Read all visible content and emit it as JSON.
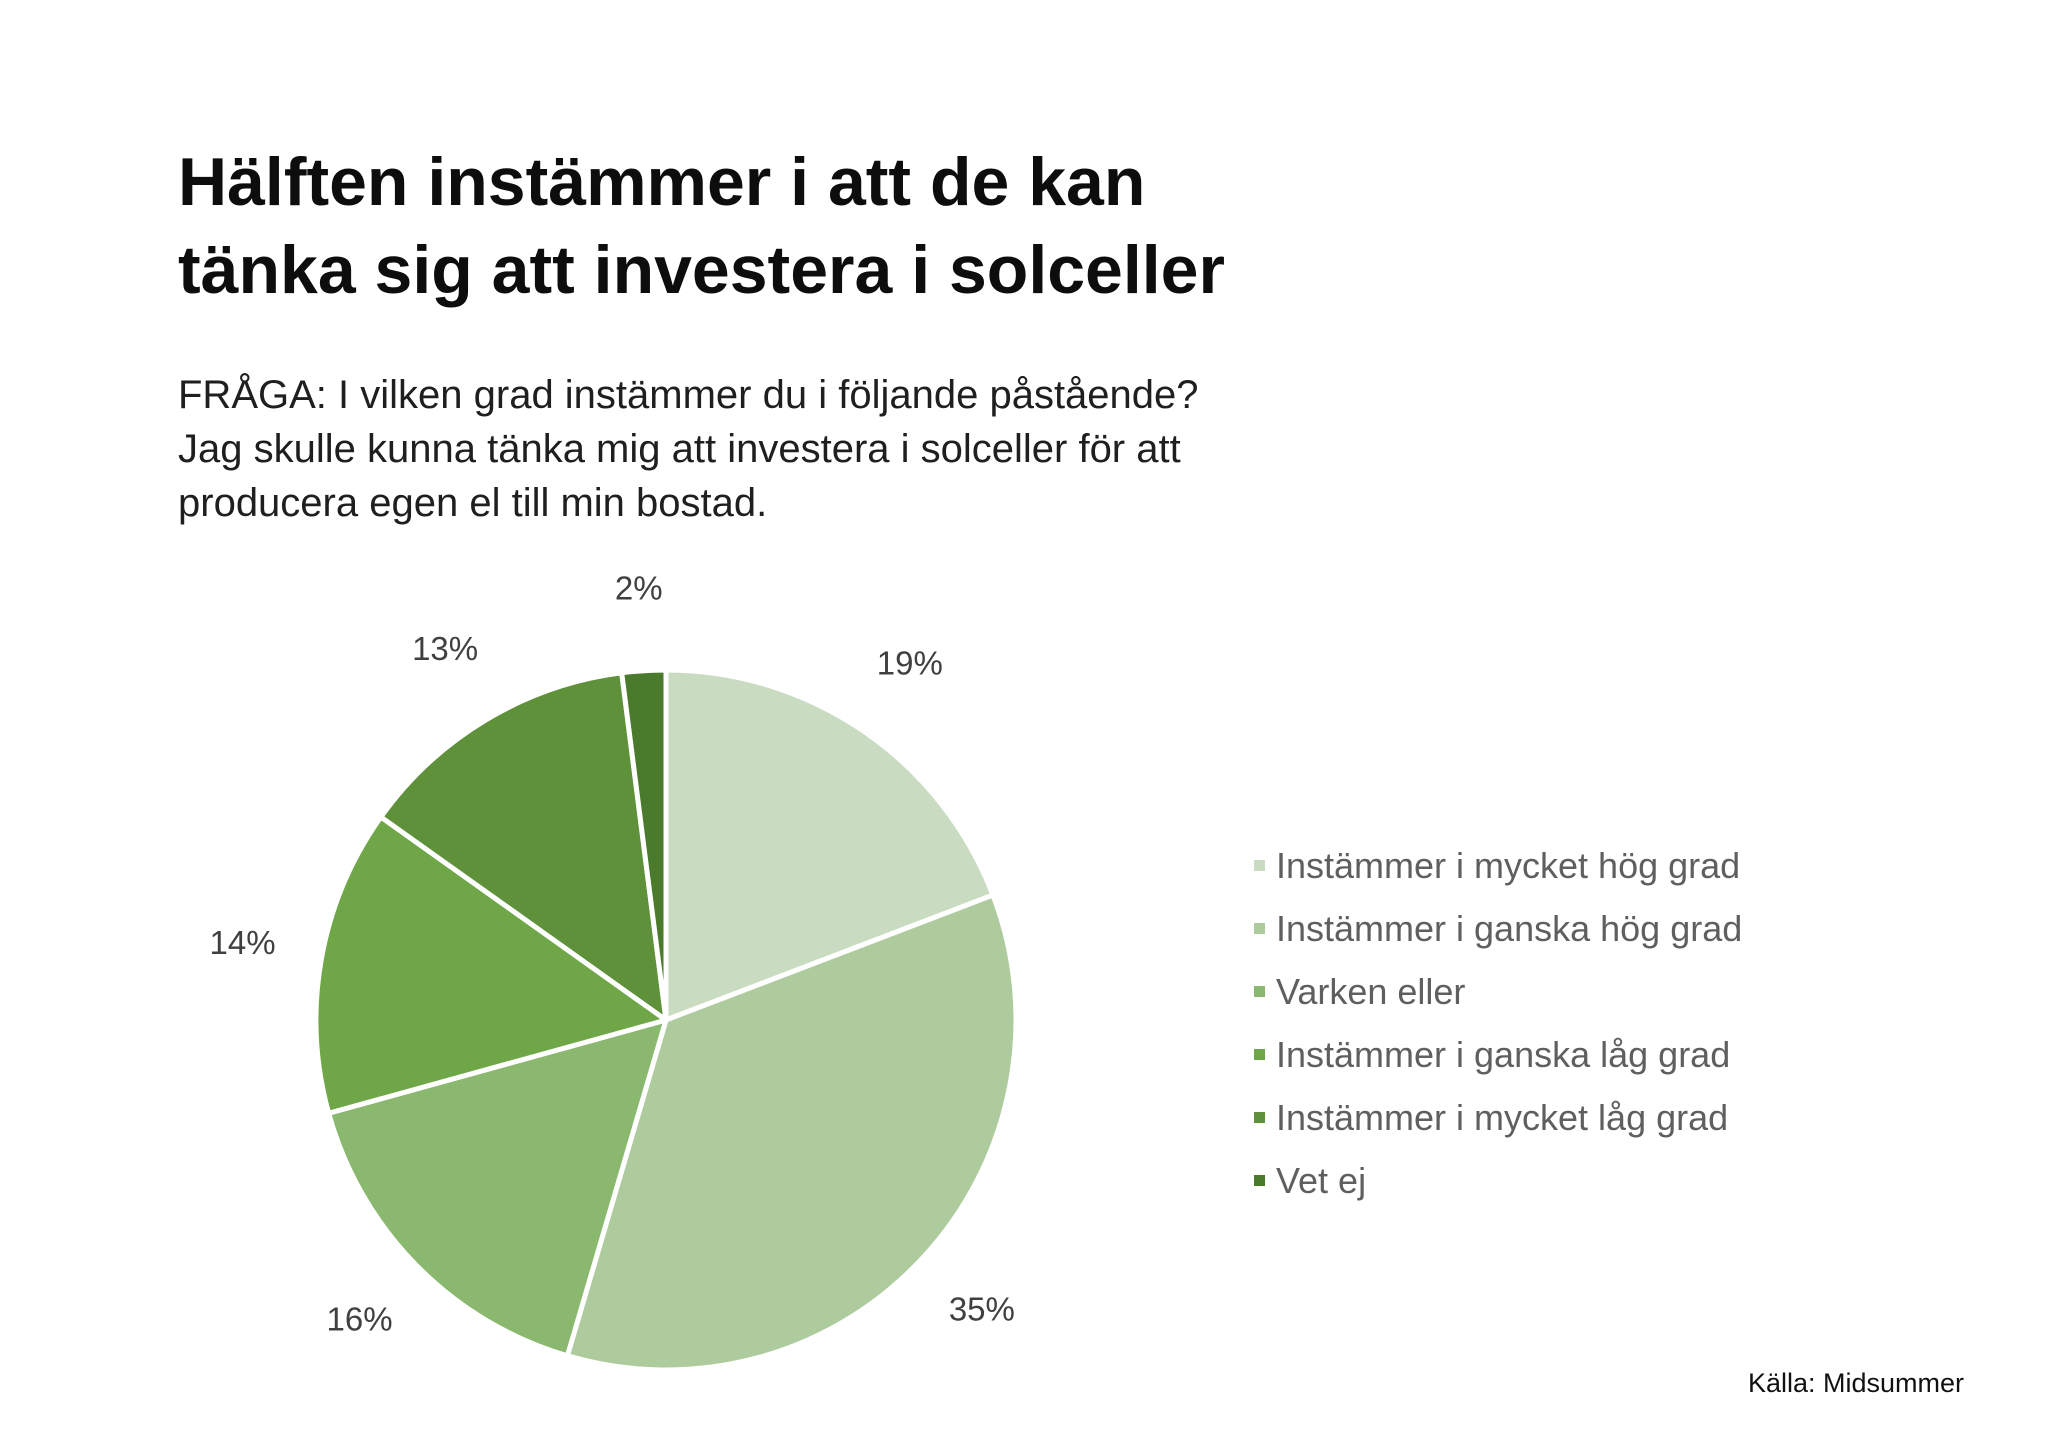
{
  "title": "Hälften instämmer i att de kan\ntänka sig att investera i solceller",
  "question": "FRÅGA: I vilken grad instämmer du i följande påstående?\nJag skulle kunna tänka mig att investera i solceller för att\nproducera egen el till min bostad.",
  "source": "Källa: Midsummer",
  "chart_data": {
    "type": "pie",
    "title": "",
    "categories": [
      "Instämmer i mycket hög grad",
      "Instämmer i ganska hög grad",
      "Varken eller",
      "Instämmer i ganska låg grad",
      "Instämmer i mycket låg grad",
      "Vet ej"
    ],
    "values": [
      19,
      35,
      16,
      14,
      13,
      2
    ],
    "labels": [
      "19%",
      "35%",
      "16%",
      "14%",
      "13%",
      "2%"
    ],
    "colors": [
      "#c9dcc2",
      "#aecb9e",
      "#8ab86e",
      "#6fa648",
      "#5e913a",
      "#4a7a2b"
    ],
    "legend_position": "right",
    "start_angle": "12 o'clock",
    "direction": "clockwise"
  }
}
